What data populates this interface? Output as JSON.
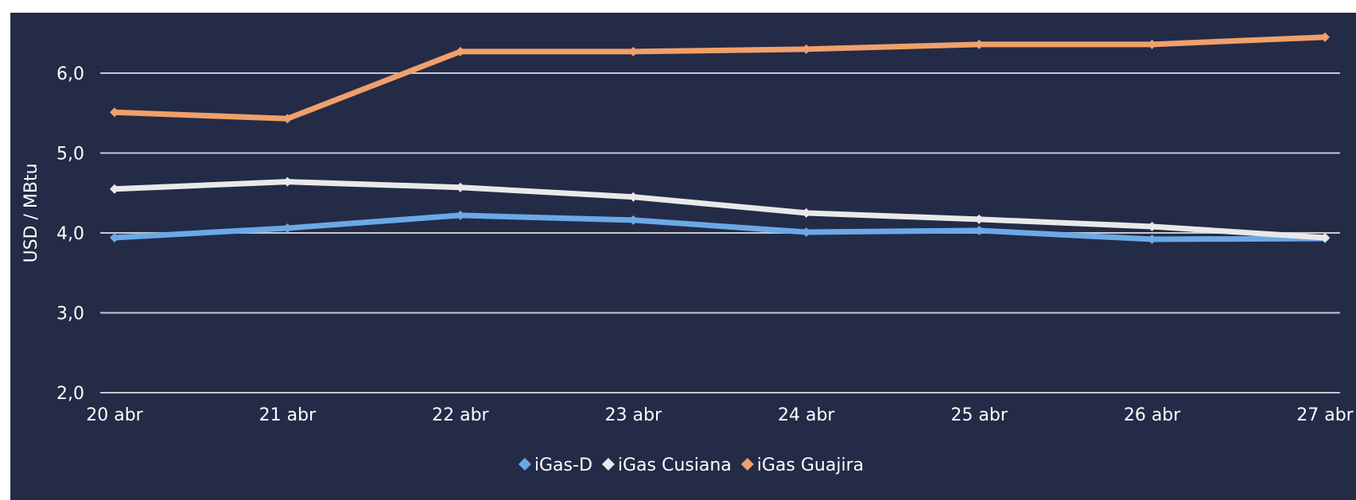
{
  "chart_data": {
    "type": "line",
    "title": "",
    "xlabel": "",
    "ylabel": "USD / MBtu",
    "categories": [
      "20 abr",
      "21 abr",
      "22 abr",
      "23 abr",
      "24 abr",
      "25 abr",
      "26 abr",
      "27 abr"
    ],
    "ylim": [
      2.0,
      6.7
    ],
    "yticks": [
      "2,0",
      "3,0",
      "4,0",
      "5,0",
      "6,0"
    ],
    "ytick_values": [
      2.0,
      3.0,
      4.0,
      5.0,
      6.0
    ],
    "grid": true,
    "legend_position": "bottom",
    "background_color": "#242b47",
    "gridline_color": "#c8c8cc",
    "series": [
      {
        "name": "iGas-D",
        "color": "#6aa9e6",
        "values": [
          3.94,
          4.06,
          4.22,
          4.16,
          4.01,
          4.03,
          3.92,
          3.93
        ]
      },
      {
        "name": "iGas Cusiana",
        "color": "#e9e9e9",
        "values": [
          4.55,
          4.64,
          4.57,
          4.45,
          4.25,
          4.17,
          4.08,
          3.94
        ]
      },
      {
        "name": "iGas Guajira",
        "color": "#f0a06a",
        "values": [
          5.51,
          5.43,
          6.27,
          6.27,
          6.3,
          6.36,
          6.36,
          6.45
        ]
      }
    ]
  }
}
